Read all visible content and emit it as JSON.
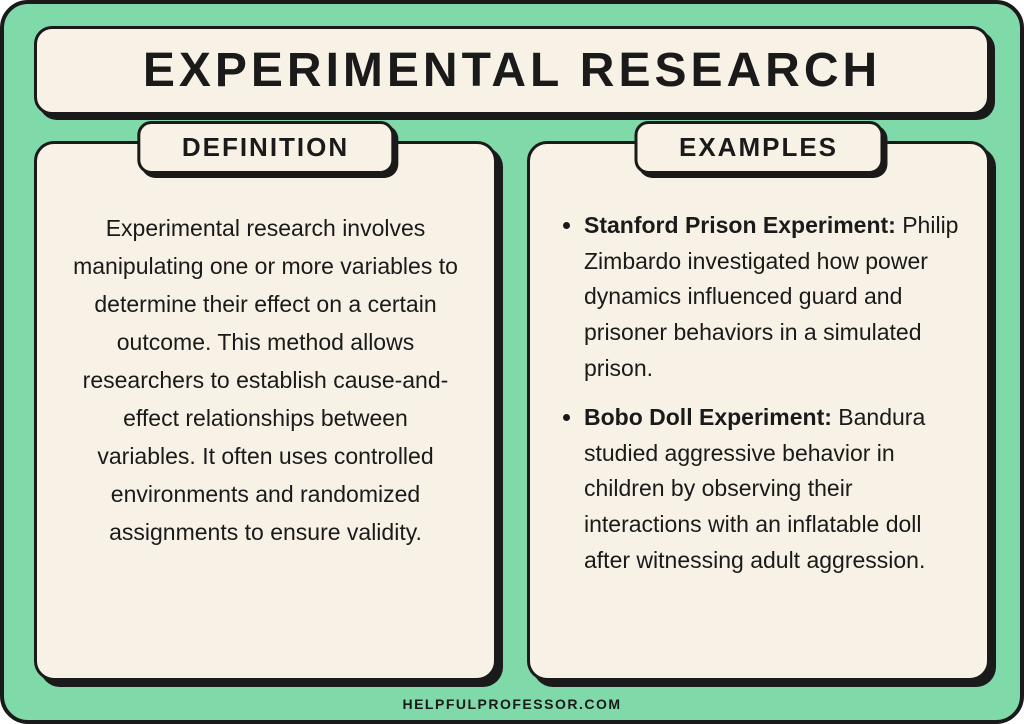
{
  "colors": {
    "background": "#80d9a9",
    "panel": "#f8f2e6",
    "border": "#1a1a1a",
    "text": "#1a1a1a"
  },
  "title": "EXPERIMENTAL RESEARCH",
  "definition": {
    "header": "DEFINITION",
    "body": "Experimental research involves manipulating one or more variables to determine their effect on a certain outcome. This method allows researchers to establish cause-and-effect relationships between variables. It often uses controlled environments and randomized assignments to ensure validity."
  },
  "examples": {
    "header": "EXAMPLES",
    "items": [
      {
        "title": "Stanford Prison Experiment:",
        "body": " Philip Zimbardo investigated how power dynamics influenced guard and prisoner behaviors in a simulated prison."
      },
      {
        "title": "Bobo Doll Experiment:",
        "body": " Bandura studied aggressive behavior in children by observing their interactions with an inflatable doll after witnessing adult aggression."
      }
    ]
  },
  "footer": "HELPFULPROFESSOR.COM"
}
